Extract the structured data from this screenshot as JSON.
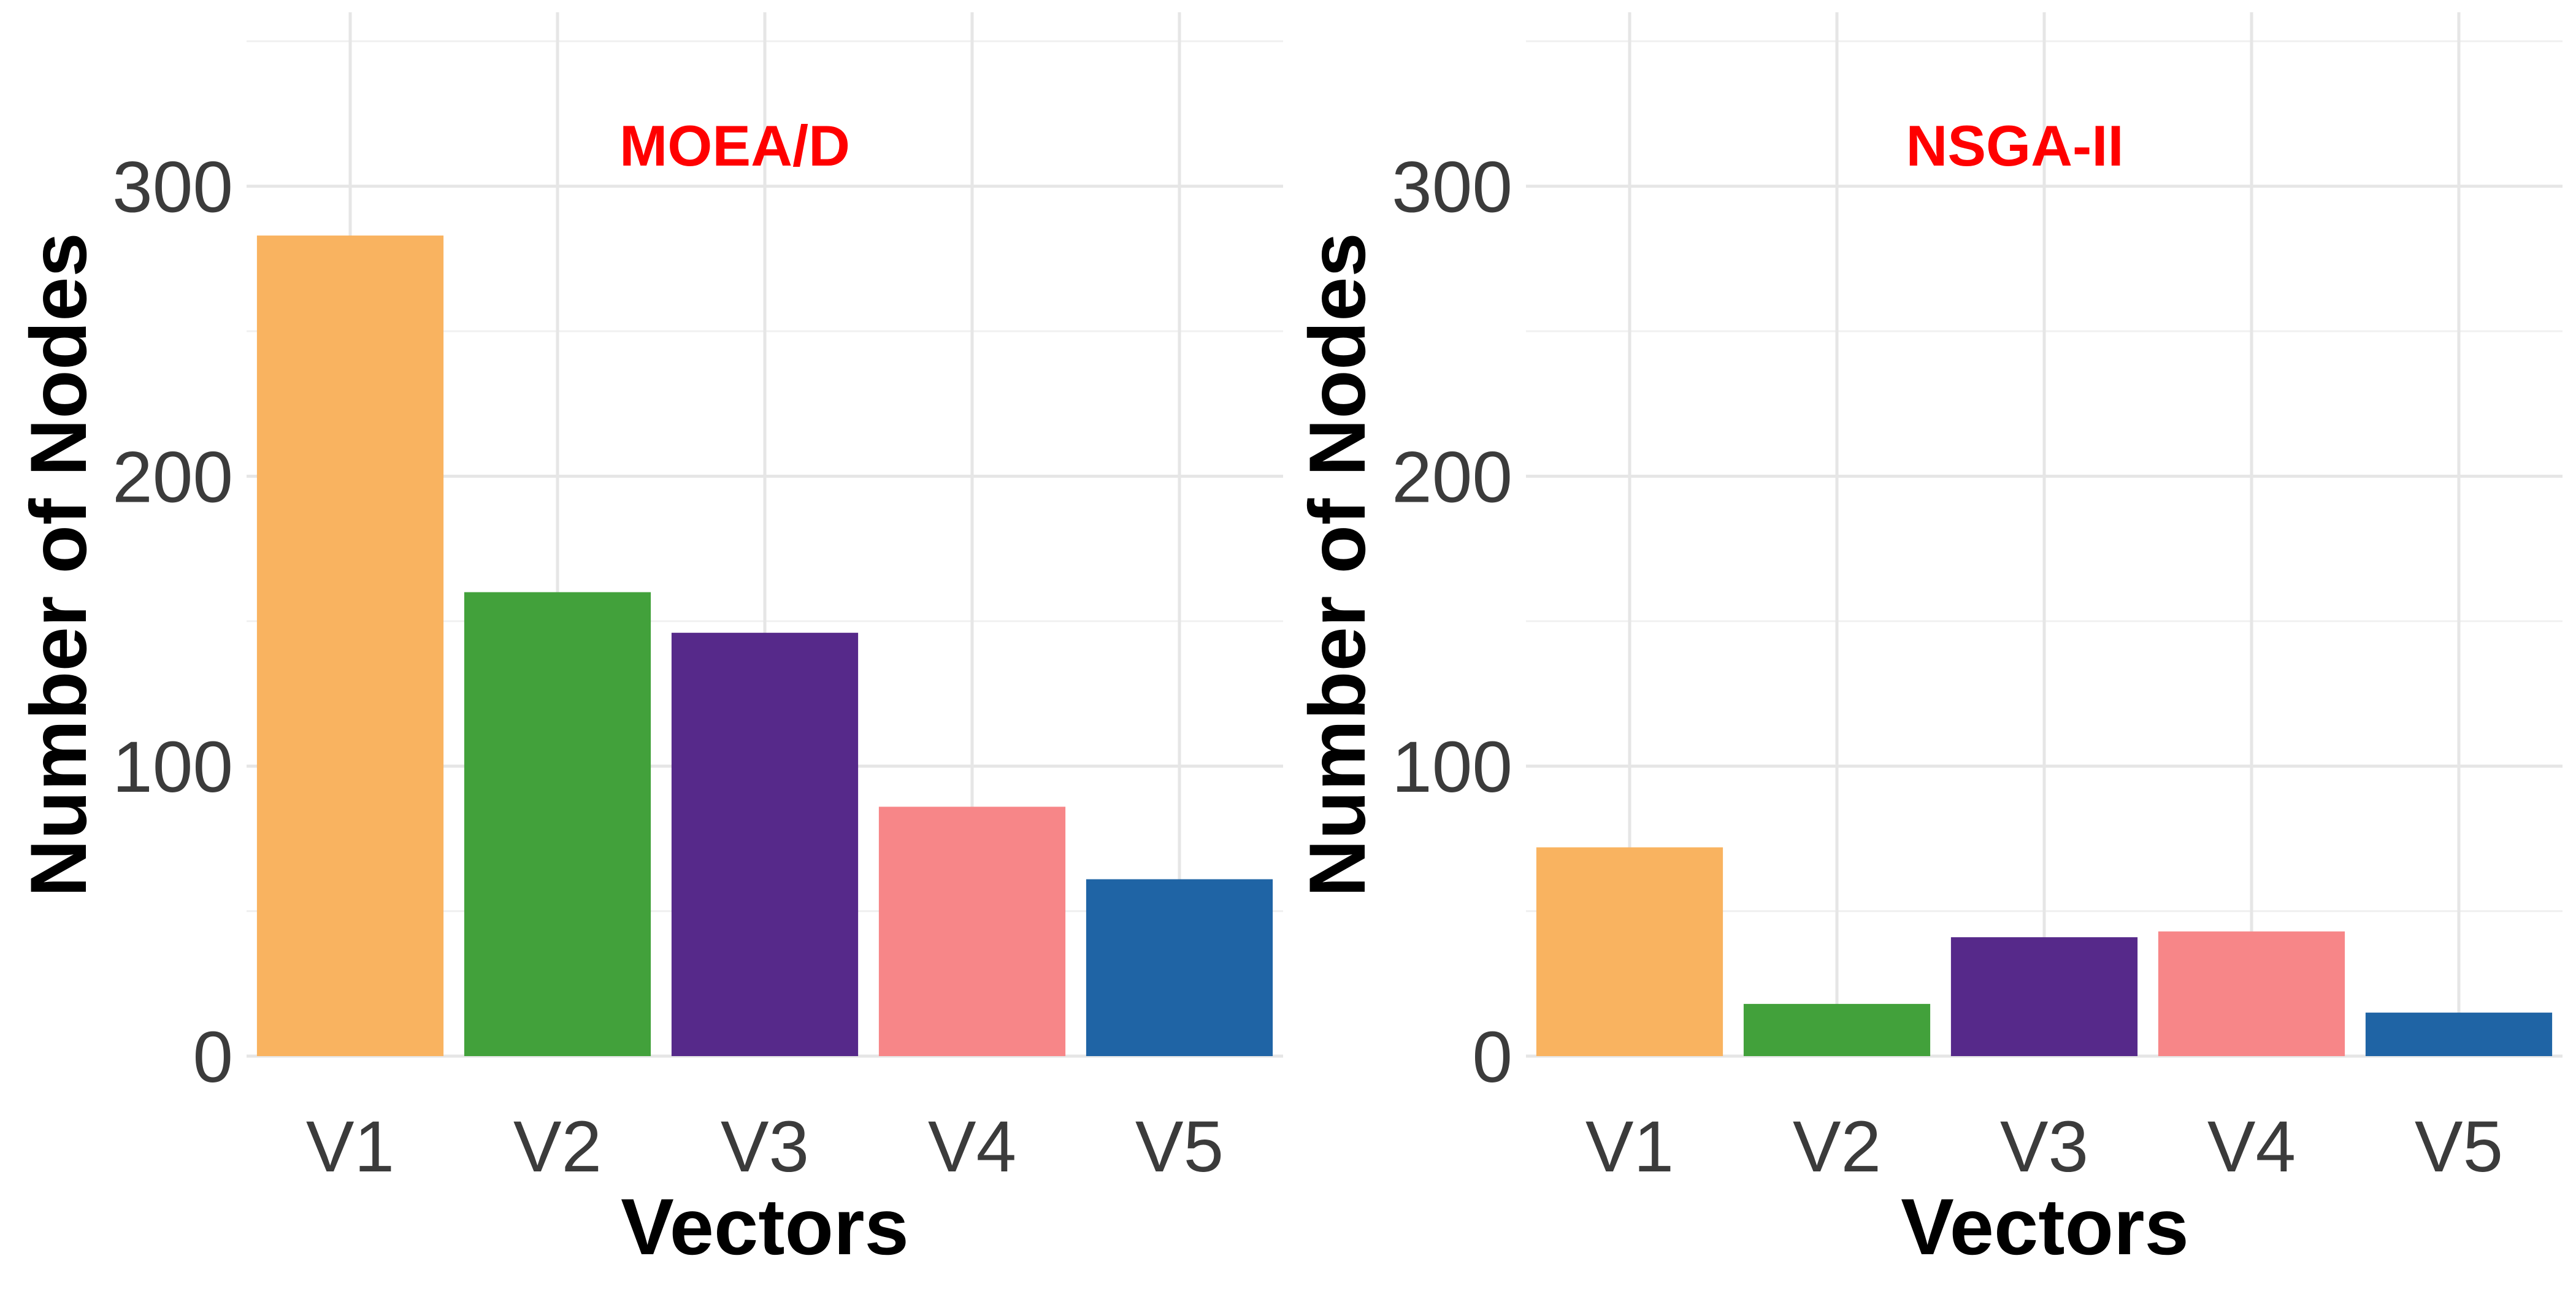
{
  "chart_data": [
    {
      "type": "bar",
      "title": "MOEA/D",
      "xlabel": "Vectors",
      "ylabel": "Number of Nodes",
      "categories": [
        "V1",
        "V2",
        "V3",
        "V4",
        "V5"
      ],
      "values": [
        283,
        160,
        146,
        86,
        61
      ],
      "ylim": [
        0,
        360
      ],
      "yticks": [
        0,
        100,
        200,
        300
      ],
      "grid": true
    },
    {
      "type": "bar",
      "title": "NSGA-II",
      "xlabel": "Vectors",
      "ylabel": "Number of Nodes",
      "categories": [
        "V1",
        "V2",
        "V3",
        "V4",
        "V5"
      ],
      "values": [
        72,
        18,
        41,
        43,
        15
      ],
      "ylim": [
        0,
        360
      ],
      "yticks": [
        0,
        100,
        200,
        300
      ],
      "grid": true
    }
  ],
  "colors": {
    "bars": [
      "#f9b360",
      "#42a13b",
      "#56298a",
      "#f78688",
      "#1f64a5"
    ],
    "title": "#ff0000"
  }
}
